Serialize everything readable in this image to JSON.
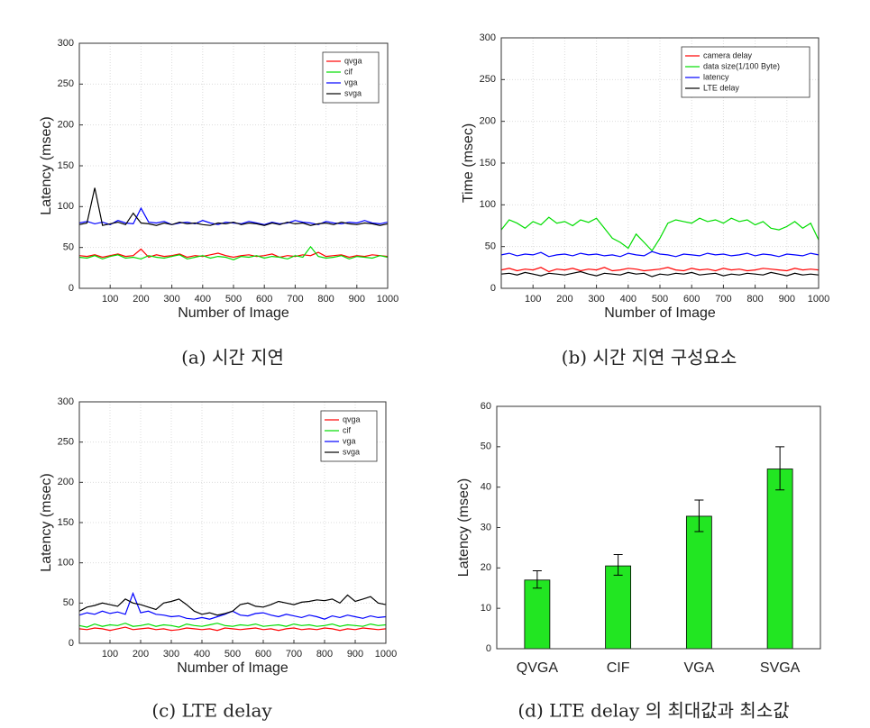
{
  "chart_data": [
    {
      "type": "line",
      "caption": "(a) 시간 지연",
      "xlabel": "Number of Image",
      "ylabel": "Latency (msec)",
      "xlim": [
        0,
        1000
      ],
      "ylim": [
        0,
        300
      ],
      "xticks": [
        100,
        200,
        300,
        400,
        500,
        600,
        700,
        800,
        900,
        1000
      ],
      "yticks": [
        0,
        50,
        100,
        150,
        200,
        250,
        300
      ],
      "grid": true,
      "legend": "upper right",
      "x": [
        0,
        25,
        50,
        75,
        100,
        125,
        150,
        175,
        200,
        225,
        250,
        275,
        300,
        325,
        350,
        375,
        400,
        425,
        450,
        475,
        500,
        525,
        550,
        575,
        600,
        625,
        650,
        675,
        700,
        725,
        750,
        775,
        800,
        825,
        850,
        875,
        900,
        925,
        950,
        975,
        1000
      ],
      "series": [
        {
          "name": "qvga",
          "color": "#ff0000",
          "values": [
            40,
            39,
            41,
            38,
            40,
            42,
            39,
            40,
            48,
            38,
            41,
            39,
            40,
            42,
            38,
            40,
            39,
            41,
            43,
            40,
            38,
            40,
            41,
            39,
            40,
            42,
            38,
            40,
            39,
            41,
            40,
            44,
            39,
            40,
            41,
            38,
            40,
            39,
            41,
            40,
            39
          ]
        },
        {
          "name": "cif",
          "color": "#00dd00",
          "values": [
            38,
            37,
            40,
            36,
            39,
            41,
            37,
            38,
            36,
            40,
            38,
            37,
            39,
            41,
            36,
            38,
            40,
            37,
            39,
            38,
            35,
            39,
            38,
            40,
            37,
            39,
            38,
            36,
            40,
            38,
            51,
            39,
            37,
            38,
            40,
            36,
            39,
            38,
            37,
            40,
            38
          ]
        },
        {
          "name": "vga",
          "color": "#0000ff",
          "values": [
            80,
            82,
            79,
            81,
            78,
            83,
            80,
            79,
            98,
            81,
            80,
            82,
            78,
            80,
            81,
            79,
            83,
            80,
            78,
            81,
            80,
            79,
            82,
            80,
            78,
            81,
            79,
            80,
            83,
            81,
            80,
            78,
            82,
            80,
            79,
            81,
            80,
            83,
            80,
            79,
            81
          ]
        },
        {
          "name": "svga",
          "color": "#000000",
          "values": [
            78,
            80,
            123,
            77,
            79,
            81,
            78,
            92,
            80,
            79,
            77,
            80,
            78,
            81,
            79,
            80,
            78,
            77,
            80,
            79,
            81,
            78,
            80,
            79,
            77,
            80,
            78,
            81,
            79,
            80,
            77,
            79,
            80,
            78,
            81,
            79,
            78,
            80,
            79,
            77,
            79
          ]
        }
      ]
    },
    {
      "type": "line",
      "caption": "(b) 시간 지연 구성요소",
      "xlabel": "Number of Image",
      "ylabel": "Time (msec)",
      "xlim": [
        0,
        1000
      ],
      "ylim": [
        0,
        300
      ],
      "xticks": [
        100,
        200,
        300,
        400,
        500,
        600,
        700,
        800,
        900,
        1000
      ],
      "yticks": [
        0,
        50,
        100,
        150,
        200,
        250,
        300
      ],
      "grid": true,
      "legend": "upper right",
      "x": [
        0,
        25,
        50,
        75,
        100,
        125,
        150,
        175,
        200,
        225,
        250,
        275,
        300,
        325,
        350,
        375,
        400,
        425,
        450,
        475,
        500,
        525,
        550,
        575,
        600,
        625,
        650,
        675,
        700,
        725,
        750,
        775,
        800,
        825,
        850,
        875,
        900,
        925,
        950,
        975,
        1000
      ],
      "series": [
        {
          "name": "camera delay",
          "color": "#ff0000",
          "values": [
            22,
            24,
            21,
            23,
            22,
            25,
            20,
            23,
            22,
            24,
            21,
            23,
            22,
            25,
            21,
            22,
            24,
            23,
            21,
            22,
            23,
            25,
            22,
            21,
            24,
            22,
            23,
            21,
            24,
            22,
            23,
            21,
            22,
            24,
            23,
            22,
            21,
            24,
            22,
            23,
            22
          ]
        },
        {
          "name": "data size(1/100 Byte)",
          "color": "#00dd00",
          "values": [
            70,
            82,
            78,
            72,
            80,
            76,
            85,
            78,
            80,
            75,
            82,
            79,
            84,
            72,
            60,
            55,
            48,
            65,
            55,
            45,
            60,
            78,
            82,
            80,
            78,
            84,
            80,
            82,
            78,
            84,
            80,
            82,
            76,
            80,
            72,
            70,
            74,
            80,
            72,
            78,
            58
          ]
        },
        {
          "name": "latency",
          "color": "#0000ff",
          "values": [
            40,
            42,
            39,
            41,
            40,
            43,
            38,
            40,
            41,
            39,
            42,
            40,
            41,
            39,
            40,
            38,
            42,
            40,
            39,
            44,
            41,
            40,
            38,
            41,
            40,
            39,
            42,
            40,
            41,
            39,
            40,
            42,
            39,
            41,
            40,
            38,
            41,
            40,
            39,
            42,
            40
          ]
        },
        {
          "name": "LTE delay",
          "color": "#000000",
          "values": [
            17,
            18,
            16,
            19,
            17,
            15,
            18,
            17,
            16,
            18,
            20,
            17,
            15,
            18,
            17,
            16,
            19,
            17,
            18,
            14,
            17,
            16,
            18,
            17,
            19,
            16,
            17,
            18,
            15,
            17,
            16,
            18,
            17,
            16,
            19,
            17,
            15,
            18,
            16,
            17,
            16
          ]
        }
      ]
    },
    {
      "type": "line",
      "caption": "(c) LTE delay",
      "xlabel": "Number of Image",
      "ylabel": "Latency (msec)",
      "xlim": [
        0,
        1000
      ],
      "ylim": [
        0,
        300
      ],
      "xticks": [
        100,
        200,
        300,
        400,
        500,
        600,
        700,
        800,
        900,
        1000
      ],
      "yticks": [
        0,
        50,
        100,
        150,
        200,
        250,
        300
      ],
      "grid": true,
      "legend": "upper right",
      "x": [
        0,
        25,
        50,
        75,
        100,
        125,
        150,
        175,
        200,
        225,
        250,
        275,
        300,
        325,
        350,
        375,
        400,
        425,
        450,
        475,
        500,
        525,
        550,
        575,
        600,
        625,
        650,
        675,
        700,
        725,
        750,
        775,
        800,
        825,
        850,
        875,
        900,
        925,
        950,
        975,
        1000
      ],
      "series": [
        {
          "name": "qvga",
          "color": "#ff0000",
          "values": [
            18,
            17,
            19,
            18,
            16,
            18,
            20,
            17,
            18,
            19,
            17,
            18,
            16,
            17,
            19,
            18,
            17,
            18,
            16,
            19,
            18,
            17,
            18,
            19,
            17,
            18,
            16,
            18,
            19,
            17,
            18,
            17,
            19,
            18,
            16,
            18,
            17,
            19,
            18,
            17,
            18
          ]
        },
        {
          "name": "cif",
          "color": "#00dd00",
          "values": [
            22,
            20,
            24,
            21,
            23,
            22,
            25,
            21,
            22,
            24,
            21,
            23,
            22,
            20,
            24,
            22,
            21,
            23,
            25,
            22,
            21,
            23,
            22,
            24,
            21,
            22,
            23,
            21,
            24,
            22,
            23,
            21,
            22,
            24,
            21,
            23,
            22,
            21,
            24,
            22,
            23
          ]
        },
        {
          "name": "vga",
          "color": "#0000ff",
          "values": [
            35,
            38,
            36,
            40,
            37,
            39,
            36,
            62,
            38,
            40,
            36,
            35,
            33,
            34,
            31,
            30,
            32,
            30,
            33,
            36,
            40,
            35,
            34,
            37,
            38,
            35,
            33,
            36,
            34,
            32,
            35,
            33,
            30,
            34,
            32,
            35,
            33,
            31,
            34,
            32,
            33
          ]
        },
        {
          "name": "svga",
          "color": "#000000",
          "values": [
            40,
            45,
            47,
            50,
            48,
            46,
            55,
            50,
            48,
            45,
            42,
            50,
            52,
            55,
            48,
            40,
            36,
            38,
            35,
            37,
            40,
            48,
            50,
            46,
            45,
            48,
            52,
            50,
            48,
            51,
            52,
            54,
            53,
            55,
            50,
            60,
            52,
            55,
            58,
            50,
            48
          ]
        }
      ]
    },
    {
      "type": "bar",
      "caption": "(d) LTE delay 의 최대값과 최소값",
      "ylabel": "Latency (msec)",
      "categories": [
        "QVGA",
        "CIF",
        "VGA",
        "SVGA"
      ],
      "values": [
        17,
        20.5,
        32.8,
        44.5
      ],
      "err_minus": [
        2,
        2.3,
        3.8,
        5.2
      ],
      "err_plus": [
        2.3,
        2.8,
        4,
        5.5
      ],
      "color": "#22e622",
      "ylim": [
        0,
        60
      ],
      "yticks": [
        0,
        10,
        20,
        30,
        40,
        50,
        60
      ],
      "grid": false
    }
  ]
}
